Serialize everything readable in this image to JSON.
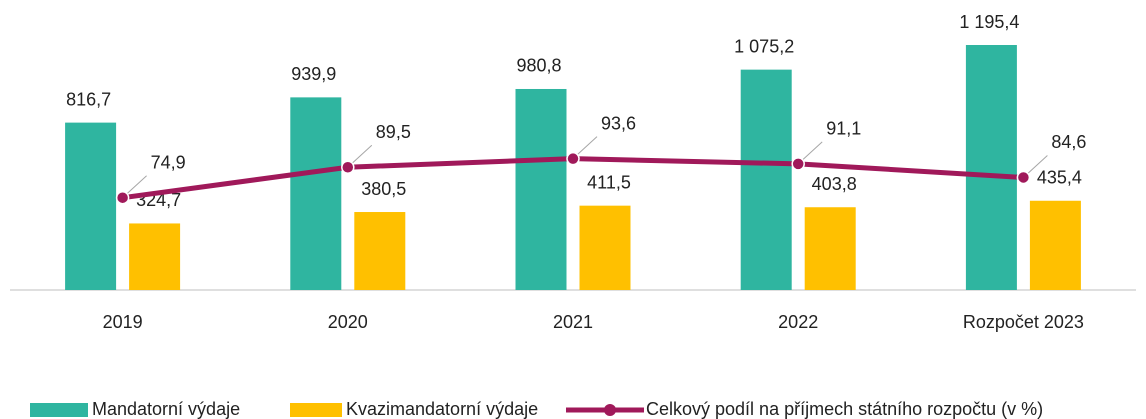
{
  "chart_data": {
    "type": "bar",
    "categories": [
      "2019",
      "2020",
      "2021",
      "2022",
      "Rozpočet 2023"
    ],
    "ylim": [
      0,
      1415
    ],
    "y2lim": [
      30.7,
      169.6
    ],
    "series": [
      {
        "name": "Mandatorní výdaje",
        "color": "#2fb5a0",
        "values": [
          816.7,
          939.9,
          980.8,
          1075.2,
          1195.4
        ],
        "value_labels": [
          "816,7",
          "939,9",
          "980,8",
          "1 075,2",
          "1 195,4"
        ]
      },
      {
        "name": "Kvazimandatorní výdaje",
        "color": "#ffc000",
        "values": [
          324.7,
          380.5,
          411.5,
          403.8,
          435.4
        ],
        "value_labels": [
          "324,7",
          "380,5",
          "411,5",
          "403,8",
          "435,4"
        ]
      },
      {
        "name": "Celkový podíl na příjmech státního rozpočtu (v %)",
        "color": "#a0195a",
        "type": "line",
        "axis": "y2",
        "values": [
          74.9,
          89.5,
          93.6,
          91.1,
          84.6
        ],
        "value_labels": [
          "74,9",
          "89,5",
          "93,6",
          "91,1",
          "84,6"
        ]
      }
    ]
  }
}
